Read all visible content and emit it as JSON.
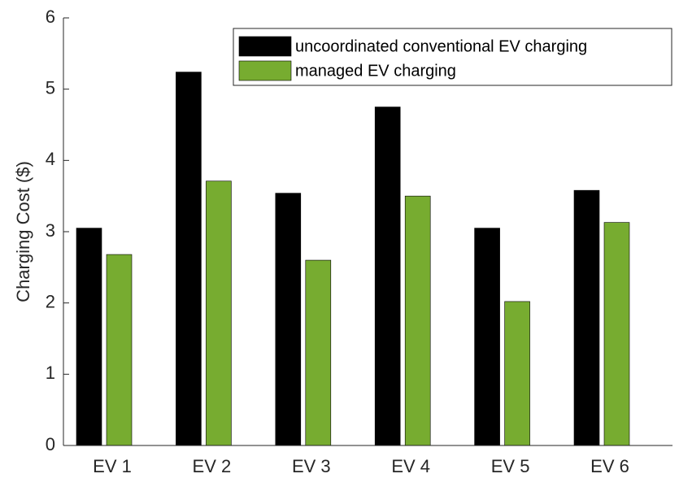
{
  "chart_data": {
    "type": "bar",
    "categories": [
      "EV 1",
      "EV 2",
      "EV 3",
      "EV 4",
      "EV 5",
      "EV 6"
    ],
    "y_label": "Charging Cost ($)",
    "series": [
      {
        "name": "uncoordinated conventional EV charging",
        "color": "#000000",
        "values": [
          3.05,
          5.24,
          3.54,
          4.75,
          3.05,
          3.58
        ]
      },
      {
        "name": "managed EV charging",
        "color": "#77ac30",
        "values": [
          2.68,
          3.71,
          2.6,
          3.5,
          2.02,
          3.13
        ]
      }
    ],
    "ylim": [
      0,
      6
    ],
    "yticks": [
      0,
      1,
      2,
      3,
      4,
      5,
      6
    ],
    "grid": false,
    "legend": "upper right"
  }
}
